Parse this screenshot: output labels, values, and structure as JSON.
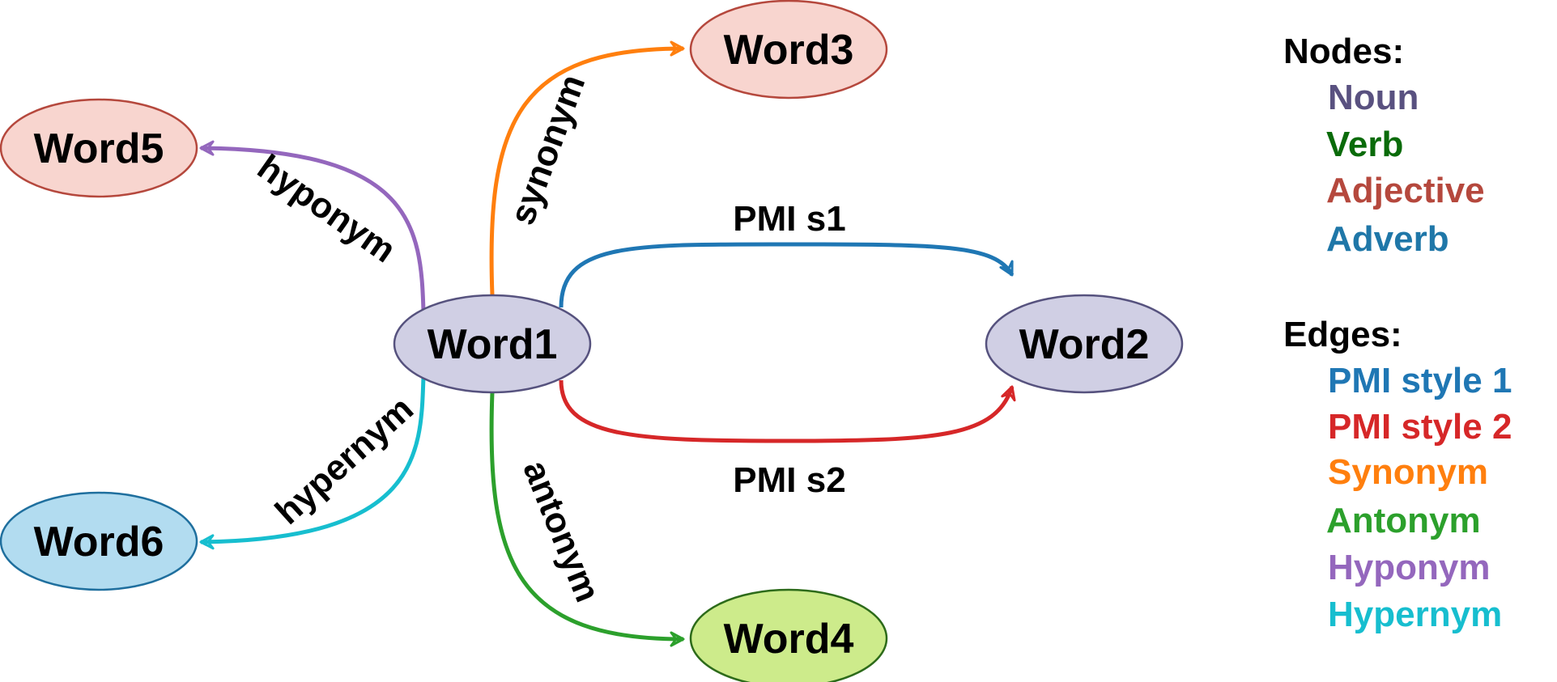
{
  "nodes": {
    "word1": {
      "label": "Word1",
      "pos": "noun"
    },
    "word2": {
      "label": "Word2",
      "pos": "noun"
    },
    "word3": {
      "label": "Word3",
      "pos": "adjective"
    },
    "word4": {
      "label": "Word4",
      "pos": "verb"
    },
    "word5": {
      "label": "Word5",
      "pos": "adjective"
    },
    "word6": {
      "label": "Word6",
      "pos": "adverb"
    }
  },
  "edges": {
    "pmi_s1": {
      "label": "PMI s1",
      "from": "Word1",
      "to": "Word2",
      "type": "pmi-style-1"
    },
    "pmi_s2": {
      "label": "PMI s2",
      "from": "Word1",
      "to": "Word2",
      "type": "pmi-style-2"
    },
    "synonym": {
      "label": "synonym",
      "from": "Word1",
      "to": "Word3",
      "type": "synonym"
    },
    "antonym": {
      "label": "antonym",
      "from": "Word1",
      "to": "Word4",
      "type": "antonym"
    },
    "hyponym": {
      "label": "hyponym",
      "from": "Word1",
      "to": "Word5",
      "type": "hyponym"
    },
    "hypernym": {
      "label": "hypernym",
      "from": "Word1",
      "to": "Word6",
      "type": "hypernym"
    }
  },
  "legend": {
    "nodes_title": "Nodes:",
    "node_types": [
      {
        "label": "Noun",
        "color": "#595180"
      },
      {
        "label": "Verb",
        "color": "#0a6b0a"
      },
      {
        "label": "Adjective",
        "color": "#b5483d"
      },
      {
        "label": "Adverb",
        "color": "#1f77a8"
      }
    ],
    "edges_title": "Edges:",
    "edge_types": [
      {
        "label": "PMI style 1",
        "color": "#1f77b4"
      },
      {
        "label": "PMI style 2",
        "color": "#d62728"
      },
      {
        "label": "Synonym",
        "color": "#ff7f0e"
      },
      {
        "label": "Antonym",
        "color": "#2ca02c"
      },
      {
        "label": "Hyponym",
        "color": "#9467bd"
      },
      {
        "label": "Hypernym",
        "color": "#17becf"
      }
    ]
  },
  "colors": {
    "noun_fill": "#d0cfe4",
    "noun_stroke": "#56527e",
    "verb_fill": "#cdeb8b",
    "verb_stroke": "#2d6b1a",
    "adjective_fill": "#f8d5cf",
    "adjective_stroke": "#b5483d",
    "adverb_fill": "#b2dcf0",
    "adverb_stroke": "#1f6f9e"
  }
}
